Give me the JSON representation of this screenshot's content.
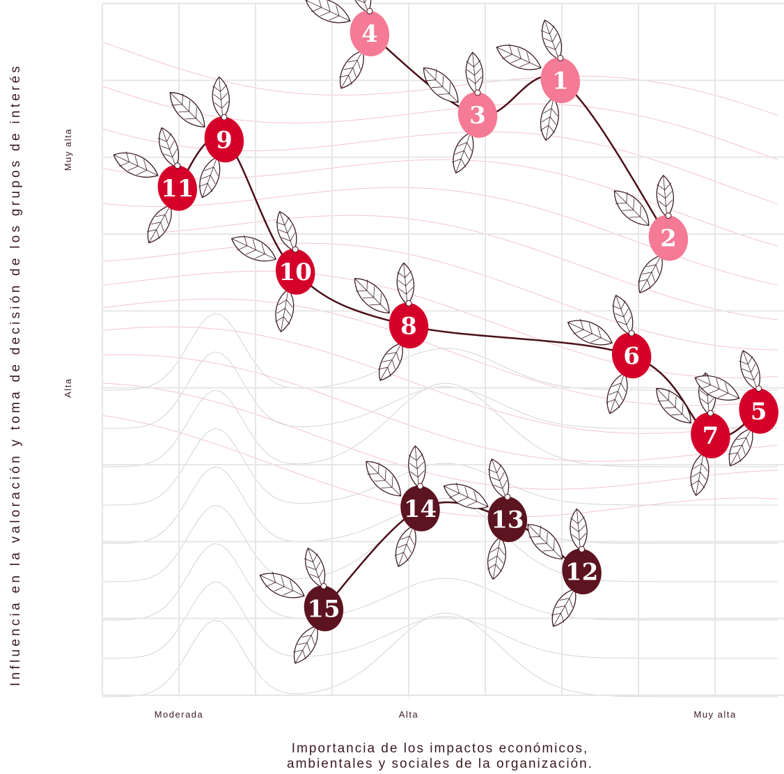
{
  "chart_data": {
    "type": "scatter",
    "xlabel": [
      "Importancia de los impactos económicos,",
      "ambientales y sociales de la organización."
    ],
    "ylabel": "Influencia en la valoración y toma de decisión de los grupos de interés",
    "xlim": [
      0,
      8.9
    ],
    "ylim": [
      0,
      9
    ],
    "xticks": [
      {
        "value": 1,
        "label": "Moderada"
      },
      {
        "value": 4,
        "label": "Alta"
      },
      {
        "value": 8,
        "label": "Muy alta"
      }
    ],
    "yticks": [
      {
        "value": 4,
        "label": "Alta"
      },
      {
        "value": 7.1,
        "label": "Muy alta"
      }
    ],
    "grid": true,
    "line_color": "#4a1018",
    "series": [
      {
        "color": "#f47a95",
        "labels": [
          "4",
          "3",
          "1",
          "2"
        ],
        "x": [
          3.49,
          4.9,
          5.98,
          7.39
        ],
        "y": [
          8.61,
          7.55,
          8.0,
          5.95
        ]
      },
      {
        "color": "#d4002a",
        "labels": [
          "11",
          "9",
          "10",
          "8",
          "6",
          "7",
          "5"
        ],
        "x": [
          0.98,
          1.59,
          2.52,
          4.0,
          6.91,
          7.94,
          8.57
        ],
        "y": [
          6.6,
          7.23,
          5.51,
          4.81,
          4.42,
          3.38,
          3.7
        ]
      },
      {
        "color": "#5b1420",
        "labels": [
          "15",
          "14",
          "13",
          "12"
        ],
        "x": [
          2.89,
          4.15,
          5.29,
          6.26
        ],
        "y": [
          1.13,
          2.43,
          2.29,
          1.61
        ]
      }
    ]
  }
}
